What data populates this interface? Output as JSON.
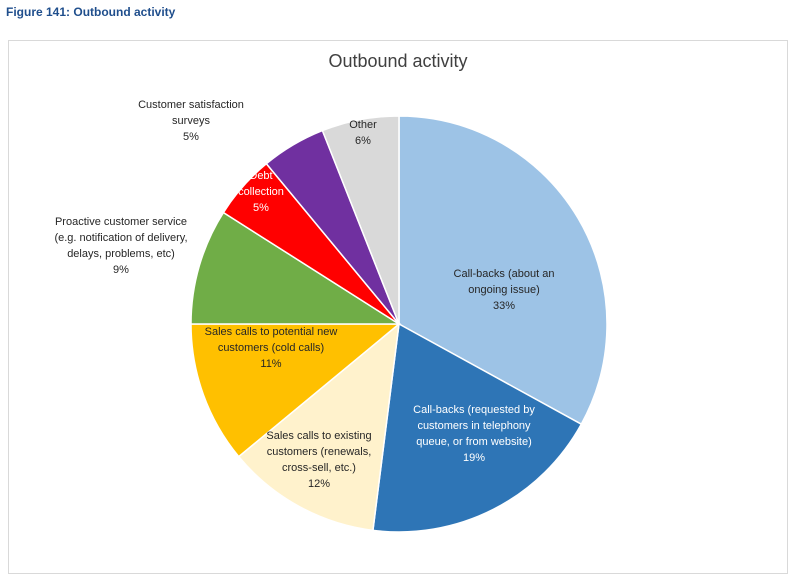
{
  "figure_caption": "Figure 141: Outbound activity",
  "colors": {
    "caption": "#1f4e8c",
    "title": "#404040",
    "frame_border": "#d9d9d9"
  },
  "chart_data": {
    "type": "pie",
    "title": "Outbound activity",
    "legend": "none",
    "slices": [
      {
        "lines": [
          "Call-backs (about an",
          "ongoing issue)"
        ],
        "value": 33,
        "pct": "33%",
        "color": "#9dc3e6",
        "label_color": "#262626"
      },
      {
        "lines": [
          "Call-backs (requested by",
          "customers in telephony",
          "queue, or from website)"
        ],
        "value": 19,
        "pct": "19%",
        "color": "#2e75b6",
        "label_color": "#ffffff"
      },
      {
        "lines": [
          "Sales calls to existing",
          "customers (renewals,",
          "cross-sell, etc.)"
        ],
        "value": 12,
        "pct": "12%",
        "color": "#fff2cc",
        "label_color": "#262626"
      },
      {
        "lines": [
          "Sales calls to potential new",
          "customers (cold calls)"
        ],
        "value": 11,
        "pct": "11%",
        "color": "#ffc000",
        "label_color": "#262626"
      },
      {
        "lines": [
          "Proactive customer service",
          "(e.g. notification of delivery,",
          "delays, problems, etc)"
        ],
        "value": 9,
        "pct": "9%",
        "color": "#70ad47",
        "label_color": "#262626"
      },
      {
        "lines": [
          "Debt",
          "collection"
        ],
        "value": 5,
        "pct": "5%",
        "color": "#ff0000",
        "label_color": "#ffffff"
      },
      {
        "lines": [
          "Customer satisfaction",
          "surveys"
        ],
        "value": 5,
        "pct": "5%",
        "color": "#7030a0",
        "label_color": "#262626"
      },
      {
        "lines": [
          "Other"
        ],
        "value": 6,
        "pct": "6%",
        "color": "#d9d9d9",
        "label_color": "#262626"
      }
    ]
  }
}
